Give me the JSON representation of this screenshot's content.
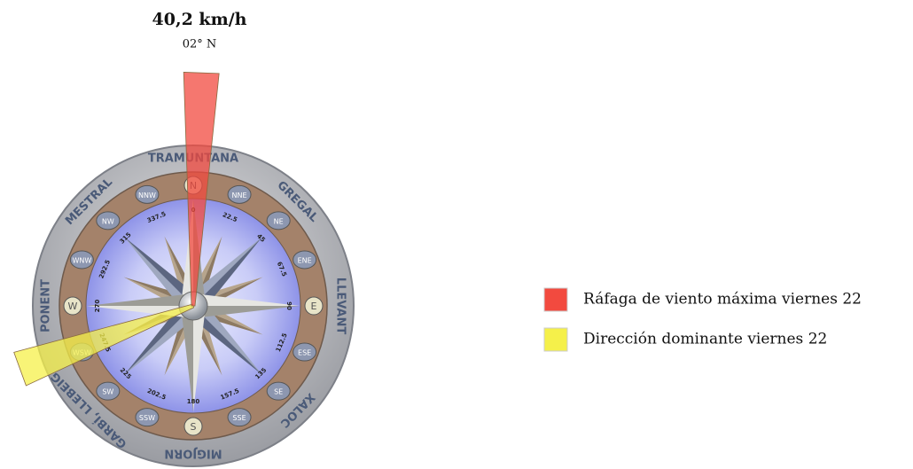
{
  "header": {
    "speed": "40,2 km/h",
    "direction": "02° N"
  },
  "gust": {
    "direction_deg": 2,
    "color": "#f24a3f"
  },
  "dominant": {
    "direction_deg": 250,
    "color": "#f5f04a"
  },
  "legend": [
    {
      "label": "Ráfaga de viento máxima viernes 22",
      "color": "#f24a3f"
    },
    {
      "label": "Dirección dominante viernes 22",
      "color": "#f5f04a"
    }
  ],
  "winds": [
    "TRAMUNTANA",
    "GREGAL",
    "LLEVANT",
    "XALOC",
    "MIGJORN",
    "GARBÍ, LLEBEIG",
    "PONENT",
    "MESTRAL"
  ],
  "points": [
    {
      "name": "N",
      "deg": 0
    },
    {
      "name": "NNE",
      "deg": 22.5
    },
    {
      "name": "NE",
      "deg": 45
    },
    {
      "name": "ENE",
      "deg": 67.5
    },
    {
      "name": "E",
      "deg": 90
    },
    {
      "name": "ESE",
      "deg": 112.5
    },
    {
      "name": "SE",
      "deg": 135
    },
    {
      "name": "SSE",
      "deg": 157.5
    },
    {
      "name": "S",
      "deg": 180
    },
    {
      "name": "SSW",
      "deg": 202.5
    },
    {
      "name": "SW",
      "deg": 225
    },
    {
      "name": "WSW",
      "deg": 247.5
    },
    {
      "name": "W",
      "deg": 270
    },
    {
      "name": "WNW",
      "deg": 292.5
    },
    {
      "name": "NW",
      "deg": 315
    },
    {
      "name": "NNW",
      "deg": 337.5
    }
  ]
}
